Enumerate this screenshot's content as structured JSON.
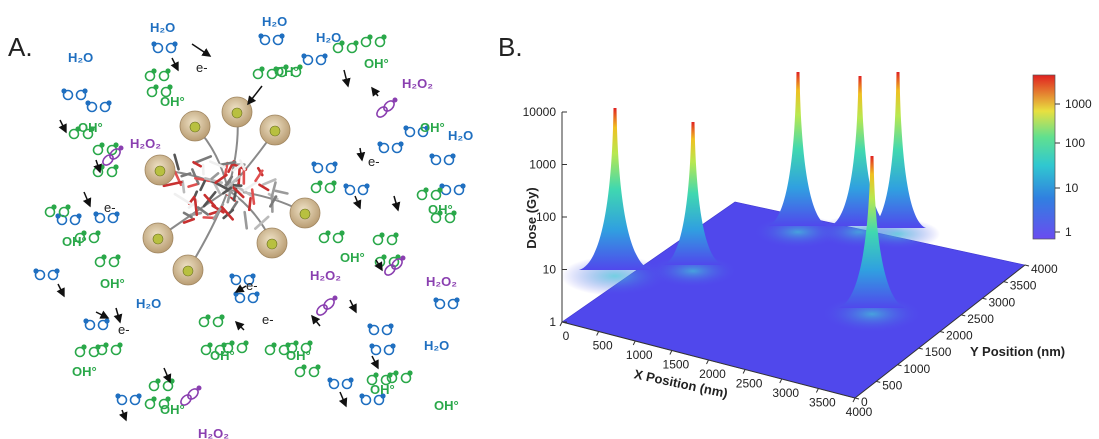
{
  "panel_a": {
    "label": "A.",
    "species": [
      {
        "text": "H₂O"
      },
      {
        "text": "H₂O"
      },
      {
        "text": "H₂O"
      },
      {
        "text": "H₂O"
      },
      {
        "text": "H₂O"
      },
      {
        "text": "H₂O"
      },
      {
        "text": "H₂O"
      },
      {
        "text": "OH°"
      },
      {
        "text": "OH°"
      },
      {
        "text": "OH°"
      },
      {
        "text": "OH°"
      },
      {
        "text": "OH°"
      },
      {
        "text": "OH°"
      },
      {
        "text": "OH°"
      },
      {
        "text": "OH°"
      },
      {
        "text": "OH°"
      },
      {
        "text": "OH°"
      },
      {
        "text": "OH°"
      },
      {
        "text": "OH°"
      },
      {
        "text": "OH°"
      },
      {
        "text": "OH°"
      },
      {
        "text": "OH°"
      },
      {
        "text": "H₂O₂"
      },
      {
        "text": "H₂O₂"
      },
      {
        "text": "H₂O₂"
      },
      {
        "text": "H₂O₂"
      },
      {
        "text": "H₂O₂"
      },
      {
        "text": "e-"
      },
      {
        "text": "e-"
      },
      {
        "text": "e-"
      },
      {
        "text": "e-"
      },
      {
        "text": "e-"
      },
      {
        "text": "e-"
      }
    ],
    "colors": {
      "water": "#1f6fc0",
      "hydroxyl": "#2aa84a",
      "peroxide": "#8a3fb0",
      "electron": "#222222"
    }
  },
  "panel_b": {
    "label": "B.",
    "z_axis": {
      "label": "Dose (Gy)",
      "ticks": [
        "1",
        "10",
        "100",
        "1000",
        "10000"
      ],
      "scale": "log"
    },
    "x_axis": {
      "label": "X Position (nm)",
      "ticks": [
        "0",
        "500",
        "1000",
        "1500",
        "2000",
        "2500",
        "3000",
        "3500",
        "4000"
      ]
    },
    "y_axis": {
      "label": "Y Position (nm)",
      "ticks": [
        "0",
        "500",
        "1000",
        "1500",
        "2000",
        "2500",
        "3000",
        "3500",
        "4000"
      ]
    },
    "colorbar": {
      "ticks": [
        "1000",
        "100",
        "10",
        "1"
      ],
      "colors": [
        "#e02020",
        "#f5d020",
        "#50d0a0",
        "#30a8d8",
        "#5a4cf0"
      ]
    }
  }
}
